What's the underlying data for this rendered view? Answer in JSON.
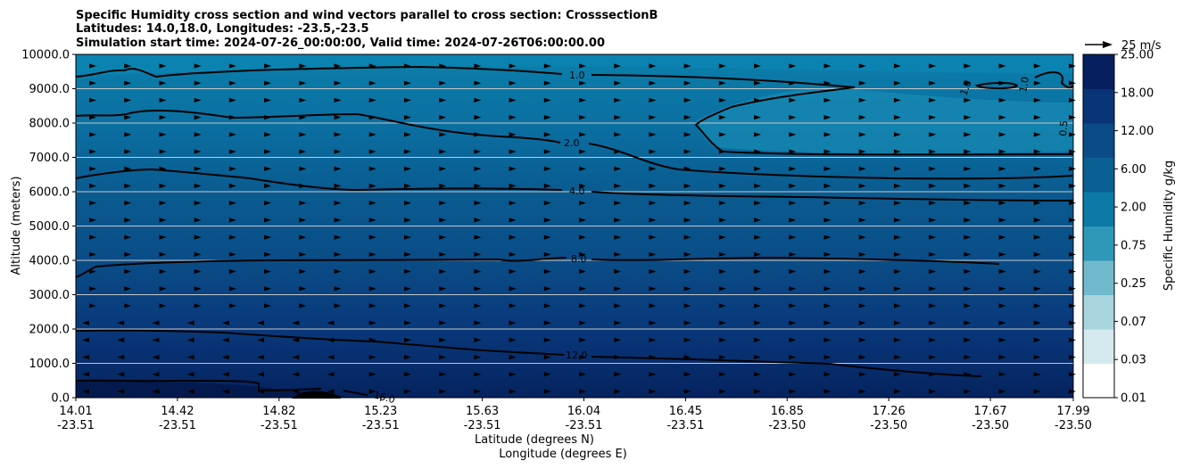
{
  "chart_data": {
    "type": "contourf",
    "title": [
      "Specific Humidity cross section and wind vectors parallel to cross section: CrosssectionB",
      "Latitudes: 14.0,18.0, Longitudes: -23.5,-23.5",
      "Simulation start time: 2024-07-26_00:00:00, Valid time: 2024-07-26T06:00:00.00"
    ],
    "xlabel_lat": "Latitude (degrees N)",
    "xlabel_lon": "Longitude (degrees E)",
    "ylabel": "Altitude (meters)",
    "ylim": [
      0,
      10000
    ],
    "yticks": [
      "0.0",
      "1000.0",
      "2000.0",
      "3000.0",
      "4000.0",
      "5000.0",
      "6000.0",
      "7000.0",
      "8000.0",
      "9000.0",
      "10000.0"
    ],
    "xticks": [
      {
        "lat": "14.01",
        "lon": "-23.51"
      },
      {
        "lat": "14.42",
        "lon": "-23.51"
      },
      {
        "lat": "14.82",
        "lon": "-23.51"
      },
      {
        "lat": "15.23",
        "lon": "-23.51"
      },
      {
        "lat": "15.63",
        "lon": "-23.51"
      },
      {
        "lat": "16.04",
        "lon": "-23.51"
      },
      {
        "lat": "16.45",
        "lon": "-23.51"
      },
      {
        "lat": "16.85",
        "lon": "-23.50"
      },
      {
        "lat": "17.26",
        "lon": "-23.50"
      },
      {
        "lat": "17.67",
        "lon": "-23.50"
      },
      {
        "lat": "17.99",
        "lon": "-23.50"
      }
    ],
    "grid": "horizontal",
    "colorbar": {
      "label": "Specific Humidity g/kg",
      "tick_labels": [
        "0.01",
        "0.03",
        "0.07",
        "0.25",
        "0.75",
        "2.00",
        "6.00",
        "12.00",
        "18.00",
        "25.00"
      ],
      "levels": 20,
      "colormap": [
        "#ffffff",
        "#d5eaee",
        "#a8d4de",
        "#70b9cc",
        "#2f97b8",
        "#0b7aa6",
        "#0a5f92",
        "#0b4b86",
        "#0a3478",
        "#06205f"
      ]
    },
    "contour_lines": [
      {
        "label": "1.0",
        "altitude": [
          9350,
          9500,
          9550,
          9580,
          9600,
          9550,
          9500,
          9450
        ]
      },
      {
        "label": "2.0",
        "altitude": [
          8200,
          8100,
          8000,
          7800,
          7500,
          7200,
          7000,
          7050
        ]
      },
      {
        "label": "4.0",
        "altitude": [
          6400,
          6550,
          6100,
          6100,
          6050,
          5850,
          5750,
          5700
        ]
      },
      {
        "label": "8.0",
        "altitude": [
          3500,
          3900,
          4000,
          4000,
          4050,
          4100,
          3900,
          3800
        ]
      },
      {
        "label": "12.0",
        "altitude": [
          1950,
          1900,
          1700,
          1400,
          1200,
          1000,
          700,
          600
        ]
      },
      {
        "label": "16.0",
        "altitude": [
          480,
          450,
          250,
          50
        ]
      }
    ],
    "contour_annotations": [
      "1.0",
      "2.0",
      "4.0",
      "8.0",
      "12.0",
      "16.0",
      "1.0",
      "1.0",
      "0.5"
    ],
    "quiver_key": {
      "label": "25 m/s",
      "speed": 25
    },
    "wind_mid": {
      "rows_from_top": 20,
      "cols": 29,
      "upper_speed": 12,
      "lower_speed": 3
    }
  }
}
